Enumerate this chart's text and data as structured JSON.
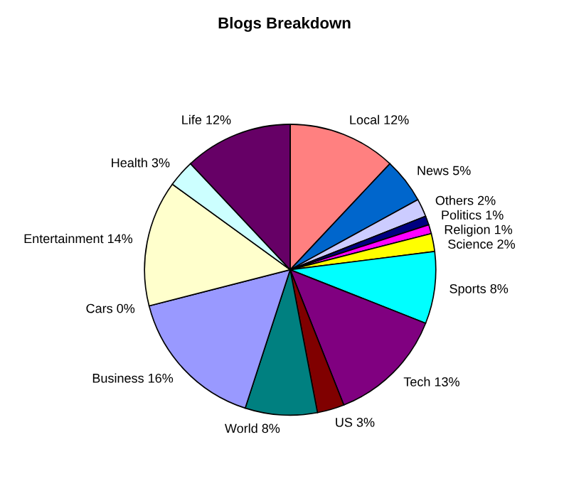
{
  "chart_data": {
    "type": "pie",
    "title": "Blogs Breakdown",
    "categories": [
      "Local",
      "News",
      "Others",
      "Politics",
      "Religion",
      "Science",
      "Sports",
      "Tech",
      "US",
      "World",
      "Business",
      "Cars",
      "Entertainment",
      "Health",
      "Life"
    ],
    "values": [
      12,
      5,
      2,
      1,
      1,
      2,
      8,
      13,
      3,
      8,
      16,
      0,
      14,
      3,
      12
    ],
    "value_labels": [
      "12%",
      "5%",
      "2%",
      "1%",
      "1%",
      "2%",
      "8%",
      "13%",
      "3%",
      "8%",
      "16%",
      "0%",
      "14%",
      "3%",
      "12%"
    ],
    "colors": [
      "#ff8080",
      "#0066cc",
      "#ccccff",
      "#000080",
      "#ff00ff",
      "#ffff00",
      "#00ffff",
      "#800080",
      "#800000",
      "#008080",
      "#9999ff",
      "#993366",
      "#ffffcc",
      "#ccffff",
      "#660066"
    ]
  }
}
